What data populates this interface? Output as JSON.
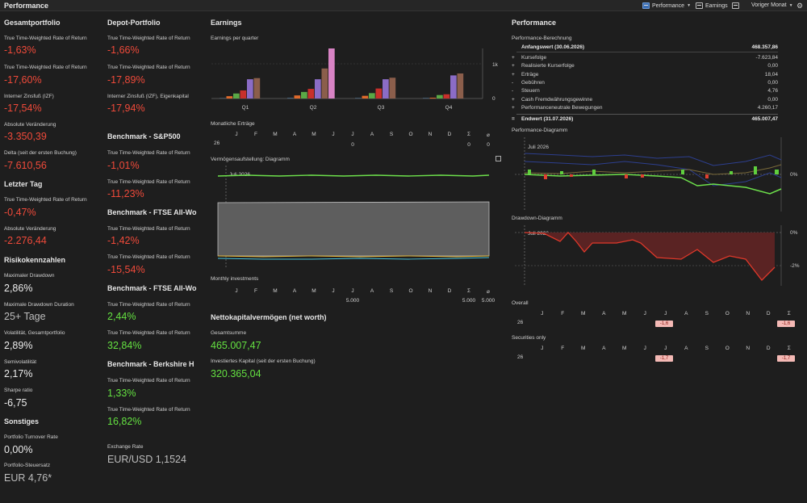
{
  "toolbar": {
    "title": "Performance",
    "performance_label": "Performance",
    "earnings_label": "Earnings",
    "period_label": "Voriger Monat"
  },
  "col1": {
    "heading": "Gesamtportfolio",
    "ttwror_label": "True Time-Weighted Rate of Return",
    "ttwror_value": "-1,63%",
    "ttwror_ann_label": "True Time-Weighted Rate of Return",
    "ttwror_ann_value": "-17,60%",
    "irr_label": "Interner Zinsfuß (IZF)",
    "irr_value": "-17,54%",
    "abs_change_label": "Absolute Veränderung",
    "abs_change_value": "-3.350,39",
    "delta_label": "Delta (seit der ersten Buchung)",
    "delta_value": "-7.610,56",
    "last_day_heading": "Letzter Tag",
    "last_day_ttwror_label": "True Time-Weighted Rate of Return",
    "last_day_ttwror_value": "-0,47%",
    "last_day_abs_label": "Absolute Veränderung",
    "last_day_abs_value": "-2.276,44",
    "risk_heading": "Risikokennzahlen",
    "max_dd_label": "Maximaler Drawdown",
    "max_dd_value": "2,86%",
    "max_dd_dur_label": "Maximale Drawdown Duration",
    "max_dd_dur_value": "25+ Tage",
    "vol_label": "Volatilität, Gesamtportfolio",
    "vol_value": "2,89%",
    "semivol_label": "Semivolatilität",
    "semivol_value": "2,17%",
    "sharpe_label": "Sharpe ratio",
    "sharpe_value": "-6,75",
    "other_heading": "Sonstiges",
    "turnover_label": "Portfolio Turnover Rate",
    "turnover_value": "0,00%",
    "tax_label": "Portfolio-Steuersatz",
    "tax_value": "EUR 4,76*"
  },
  "col2": {
    "heading": "Depot-Portfolio",
    "ttwror_label": "True Time-Weighted Rate of Return",
    "ttwror_value": "-1,66%",
    "ttwror_ann_label": "True Time-Weighted Rate of Return",
    "ttwror_ann_value": "-17,89%",
    "irr_label": "Interner Zinsfuß (IZF), Eigenkapital",
    "irr_value": "-17,94%",
    "bm1_heading": "Benchmark - S&P500",
    "bm1_l1": "True Time-Weighted Rate of Return",
    "bm1_v1": "-1,01%",
    "bm1_l2": "True Time-Weighted Rate of Return",
    "bm1_v2": "-11,23%",
    "bm2_heading": "Benchmark - FTSE All-Wo",
    "bm2_l1": "True Time-Weighted Rate of Return",
    "bm2_v1": "-1,42%",
    "bm2_l2": "True Time-Weighted Rate of Return",
    "bm2_v2": "-15,54%",
    "bm3_heading": "Benchmark - FTSE All-Wo",
    "bm3_l1": "True Time-Weighted Rate of Return",
    "bm3_v1": "2,44%",
    "bm3_l2": "True Time-Weighted Rate of Return",
    "bm3_v2": "32,84%",
    "bm4_heading": "Benchmark - Berkshire H",
    "bm4_l1": "True Time-Weighted Rate of Return",
    "bm4_v1": "1,33%",
    "bm4_l2": "True Time-Weighted Rate of Return",
    "bm4_v2": "16,82%",
    "fx_label": "Exchange Rate",
    "fx_value": "EUR/USD 1,1524"
  },
  "earnings": {
    "heading": "Earnings",
    "per_quarter_label": "Earnings per quarter",
    "quarters": [
      "Q1",
      "Q2",
      "Q3",
      "Q4"
    ],
    "axis_1k": "1k",
    "axis_0": "0",
    "monthly_label": "Monatliche Erträge",
    "year": "26",
    "months": [
      "J",
      "F",
      "M",
      "A",
      "M",
      "J",
      "J",
      "A",
      "S",
      "O",
      "N",
      "D",
      "Σ",
      "⌀"
    ],
    "monthly_values": [
      "",
      "",
      "",
      "",
      "",
      "",
      "0",
      "",
      "",
      "",
      "",
      "",
      "0",
      "0"
    ],
    "diagram_label": "Vermögensaufstellung: Diagramm",
    "diagram_date": "Juli 2026",
    "invest_label": "Monthly investments",
    "invest_values": [
      "",
      "",
      "",
      "",
      "",
      "",
      "5.000",
      "",
      "",
      "",
      "",
      "",
      "5.000",
      "5.000"
    ],
    "net_worth_heading": "Nettokapitalvermögen (net worth)",
    "total_label": "Gesamtsumme",
    "total_value": "465.007,47",
    "invested_label": "Investiertes Kapital (seit der ersten Buchung)",
    "invested_value": "320.365,04"
  },
  "performance": {
    "heading": "Performance",
    "calc_label": "Performance-Berechnung",
    "start_label": "Anfangswert (30.06.2026)",
    "start_value": "468.357,86",
    "rows": [
      {
        "sym": "+",
        "name": "Kursefolge",
        "value": "-7.623,84"
      },
      {
        "sym": "+",
        "name": "Realisierte Kurserfolge",
        "value": "0,00"
      },
      {
        "sym": "+",
        "name": "Erträge",
        "value": "18,04"
      },
      {
        "sym": "-",
        "name": "Gebühren",
        "value": "0,00"
      },
      {
        "sym": "-",
        "name": "Steuern",
        "value": "4,76"
      },
      {
        "sym": "+",
        "name": "Cash Fremdwährungsgewinne",
        "value": "0,00"
      },
      {
        "sym": "+",
        "name": "Performanceneutrale Bewegungen",
        "value": "4.260,17"
      }
    ],
    "end_sym": "=",
    "end_label": "Endwert (31.07.2026)",
    "end_value": "465.007,47",
    "chart_label": "Performance-Diagramm",
    "chart_date": "Juli 2026",
    "chart_axis_0": "0%",
    "drawdown_label": "Drawdown-Diagramm",
    "drawdown_date": "Juli 2026",
    "dd_axis_0": "0%",
    "dd_axis_2": "-2%",
    "overall_label": "Overall",
    "securities_label": "Securities only",
    "year": "26",
    "months": [
      "J",
      "F",
      "M",
      "A",
      "M",
      "J",
      "J",
      "A",
      "S",
      "O",
      "N",
      "D",
      "Σ"
    ],
    "overall_july": "-1,6",
    "overall_sum": "-1,6",
    "sec_july": "-1,7",
    "sec_sum": "-1,7"
  },
  "chart_data": [
    {
      "type": "bar",
      "title": "Earnings per quarter",
      "categories": [
        "Q1",
        "Q2",
        "Q3",
        "Q4"
      ],
      "ylim": [
        0,
        1300
      ],
      "series": [
        {
          "color": "#6fa8dc",
          "values": [
            5,
            10,
            8,
            8
          ]
        },
        {
          "color": "#e06a2b",
          "values": [
            60,
            80,
            70,
            20
          ]
        },
        {
          "color": "#5aa846",
          "values": [
            130,
            170,
            140,
            90
          ]
        },
        {
          "color": "#c8302b",
          "values": [
            210,
            250,
            260,
            110
          ]
        },
        {
          "color": "#8b6cc6",
          "values": [
            500,
            500,
            500,
            600
          ]
        },
        {
          "color": "#8b5e4b",
          "values": [
            530,
            780,
            540,
            650
          ]
        },
        {
          "color": "#d883c4",
          "values": [
            0,
            1300,
            0,
            0
          ]
        }
      ]
    }
  ]
}
